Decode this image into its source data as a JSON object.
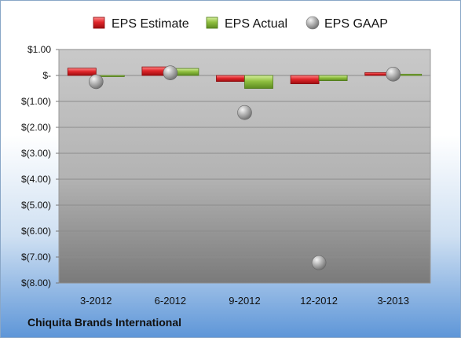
{
  "company": "Chiquita Brands International",
  "chart_data": {
    "type": "bar",
    "categories": [
      "3-2012",
      "6-2012",
      "9-2012",
      "12-2012",
      "3-2013"
    ],
    "series": [
      {
        "name": "EPS Estimate",
        "kind": "bar",
        "color": "#e0262b",
        "values": [
          0.28,
          0.33,
          -0.23,
          -0.32,
          0.11
        ]
      },
      {
        "name": "EPS Actual",
        "kind": "bar",
        "color": "#8fbf3f",
        "values": [
          0.0,
          0.27,
          -0.5,
          -0.2,
          0.05
        ]
      },
      {
        "name": "EPS GAAP",
        "kind": "bubble",
        "color": "#a6a6a6",
        "values": [
          -0.24,
          0.1,
          -1.43,
          -7.22,
          0.05
        ]
      }
    ],
    "yticks": [
      "$1.00",
      "$-",
      "$(1.00)",
      "$(2.00)",
      "$(3.00)",
      "$(4.00)",
      "$(5.00)",
      "$(6.00)",
      "$(7.00)",
      "$(8.00)"
    ],
    "ylim": [
      -8,
      1
    ],
    "legend": "top",
    "grid": true
  }
}
